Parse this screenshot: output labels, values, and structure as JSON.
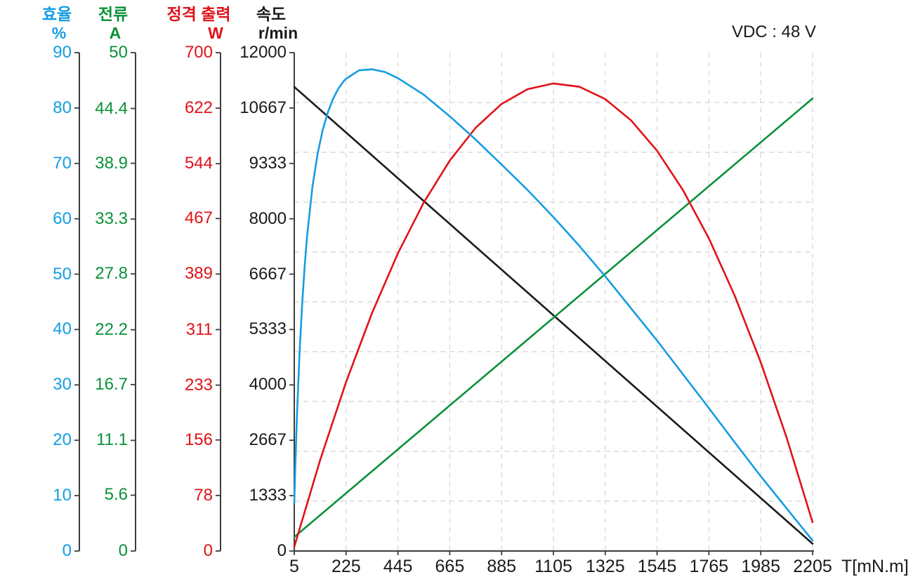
{
  "chart_data": {
    "type": "line",
    "title": "",
    "annotations": [
      {
        "text": "VDC : 48 V"
      }
    ],
    "grid": {
      "visible": true,
      "style": "dashed",
      "color": "#dadada",
      "horizontal_divisions": 10
    },
    "legend": {
      "visible": false
    },
    "x_axis": {
      "label": "T[mN.m]",
      "range": [
        5,
        2205
      ],
      "ticks": [
        "5",
        "225",
        "445",
        "665",
        "885",
        "1105",
        "1325",
        "1545",
        "1765",
        "1985",
        "2205"
      ]
    },
    "y_axes": [
      {
        "id": "efficiency",
        "title": "효율",
        "unit": "%",
        "color": "#149de2",
        "range": [
          0,
          90
        ],
        "ticks": [
          "0",
          "10",
          "20",
          "30",
          "40",
          "50",
          "60",
          "70",
          "80",
          "90"
        ]
      },
      {
        "id": "current",
        "title": "전류",
        "unit": "A",
        "color": "#0a9138",
        "range": [
          0,
          50
        ],
        "ticks": [
          "0",
          "5.6",
          "11.1",
          "16.7",
          "22.2",
          "27.8",
          "33.3",
          "38.9",
          "44.4",
          "50"
        ]
      },
      {
        "id": "power",
        "title": "정격 출력",
        "unit": "W",
        "color": "#e11219",
        "range": [
          0,
          700
        ],
        "ticks": [
          "0",
          "78",
          "156",
          "233",
          "311",
          "389",
          "467",
          "544",
          "622",
          "700"
        ]
      },
      {
        "id": "speed",
        "title": "속도",
        "unit": "r/min",
        "color": "#1a1a1a",
        "range": [
          0,
          12000
        ],
        "ticks": [
          "0",
          "1333",
          "2667",
          "4000",
          "5333",
          "6667",
          "8000",
          "9333",
          "10667",
          "12000"
        ]
      }
    ],
    "series": [
      {
        "id": "speed",
        "name": "속도 (speed)",
        "axis": "speed",
        "color": "#1a1a1a",
        "points": [
          [
            5,
            11175
          ],
          [
            2205,
            175
          ]
        ]
      },
      {
        "id": "current",
        "name": "전류 (current)",
        "axis": "current",
        "color": "#0a9138",
        "points": [
          [
            5,
            1.4
          ],
          [
            2205,
            45.4
          ]
        ]
      },
      {
        "id": "power",
        "name": "정격 출력 (rated output)",
        "axis": "power",
        "color": "#e11219",
        "points": [
          [
            5,
            5.9
          ],
          [
            115,
            128.0
          ],
          [
            225,
            237.4
          ],
          [
            335,
            334.2
          ],
          [
            445,
            418.2
          ],
          [
            555,
            489.7
          ],
          [
            665,
            548.4
          ],
          [
            775,
            594.5
          ],
          [
            885,
            627.9
          ],
          [
            995,
            648.6
          ],
          [
            1105,
            656.7
          ],
          [
            1215,
            652.1
          ],
          [
            1325,
            634.8
          ],
          [
            1435,
            604.8
          ],
          [
            1545,
            562.2
          ],
          [
            1655,
            506.9
          ],
          [
            1765,
            439.0
          ],
          [
            1875,
            358.3
          ],
          [
            1985,
            265.1
          ],
          [
            2095,
            159.1
          ],
          [
            2205,
            40.4
          ]
        ]
      },
      {
        "id": "efficiency",
        "name": "효율 (efficiency)",
        "axis": "efficiency",
        "color": "#149de2",
        "points": [
          [
            5,
            8.7
          ],
          [
            10,
            16.2
          ],
          [
            16,
            24.0
          ],
          [
            27,
            35.4
          ],
          [
            38,
            44.3
          ],
          [
            49,
            51.4
          ],
          [
            60,
            57.1
          ],
          [
            82,
            65.7
          ],
          [
            104,
            71.7
          ],
          [
            126,
            76.1
          ],
          [
            148,
            79.3
          ],
          [
            170,
            81.7
          ],
          [
            192,
            83.5
          ],
          [
            214,
            84.8
          ],
          [
            225,
            85.3
          ],
          [
            280,
            86.8
          ],
          [
            335,
            87.0
          ],
          [
            390,
            86.5
          ],
          [
            445,
            85.4
          ],
          [
            555,
            82.4
          ],
          [
            665,
            78.5
          ],
          [
            775,
            74.3
          ],
          [
            885,
            69.8
          ],
          [
            995,
            65.2
          ],
          [
            1105,
            60.3
          ],
          [
            1215,
            55.1
          ],
          [
            1325,
            49.6
          ],
          [
            1435,
            43.8
          ],
          [
            1545,
            38.0
          ],
          [
            1655,
            31.9
          ],
          [
            1765,
            25.8
          ],
          [
            1875,
            19.6
          ],
          [
            1985,
            13.5
          ],
          [
            2095,
            7.7
          ],
          [
            2205,
            1.9
          ]
        ]
      }
    ]
  }
}
